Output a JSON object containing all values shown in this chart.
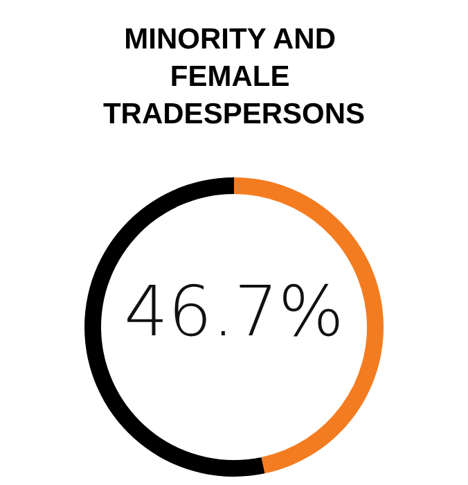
{
  "chart_data": {
    "type": "donut",
    "title": "MINORITY AND FEMALE TRADESPERSONS",
    "categories": [
      null,
      null
    ],
    "values": [
      46.7,
      53.3
    ],
    "colors": [
      "#f47c20",
      "#000000"
    ],
    "annotations": [
      "46.7%"
    ]
  }
}
